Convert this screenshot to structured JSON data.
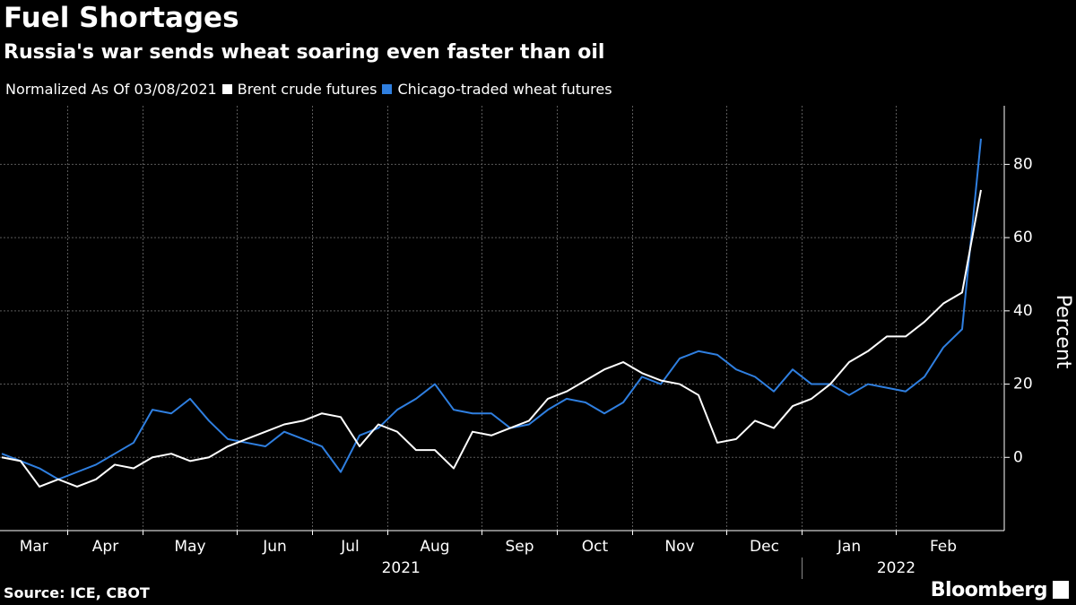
{
  "chart_data": {
    "type": "line",
    "title": "Fuel Shortages",
    "subtitle": "Russia's war sends wheat soaring even faster than oil",
    "note": "Normalized As Of 03/08/2021",
    "y_label": "Percent",
    "source": "Source: ICE, CBOT",
    "brand": "Bloomberg",
    "categories": [
      "Mar",
      null,
      null,
      null,
      "Apr",
      null,
      null,
      null,
      "May",
      null,
      null,
      null,
      null,
      "Jun",
      null,
      null,
      null,
      "Jul",
      null,
      null,
      null,
      "Aug",
      null,
      null,
      null,
      null,
      "Sep",
      null,
      null,
      null,
      "Oct",
      null,
      null,
      null,
      "Nov",
      null,
      null,
      null,
      null,
      "Dec",
      null,
      null,
      null,
      "Jan",
      null,
      null,
      null,
      null,
      "Feb",
      null,
      null,
      null,
      null
    ],
    "years": [
      {
        "label": "2021",
        "first_month": "Mar"
      },
      {
        "label": "2022",
        "first_month": "Jan"
      }
    ],
    "series": [
      {
        "name": "Brent crude futures",
        "color": "#ffffff",
        "values": [
          0,
          -1,
          -8,
          -6,
          -8,
          -6,
          -2,
          -3,
          0,
          1,
          -1,
          0,
          3,
          5,
          7,
          9,
          10,
          12,
          11,
          3,
          9,
          7,
          2,
          2,
          -3,
          7,
          6,
          8,
          10,
          16,
          18,
          21,
          24,
          26,
          23,
          21,
          20,
          17,
          4,
          5,
          10,
          8,
          14,
          16,
          20,
          26,
          29,
          33,
          33,
          37,
          42,
          45,
          73
        ]
      },
      {
        "name": "Chicago-traded wheat futures",
        "color": "#2f7fe0",
        "values": [
          1,
          -1,
          -3,
          -6,
          -4,
          -2,
          1,
          4,
          13,
          12,
          16,
          10,
          5,
          4,
          3,
          7,
          5,
          3,
          -4,
          6,
          8,
          13,
          16,
          20,
          13,
          12,
          12,
          8,
          9,
          13,
          16,
          15,
          12,
          15,
          22,
          20,
          27,
          29,
          28,
          24,
          22,
          18,
          24,
          20,
          20,
          17,
          20,
          19,
          18,
          22,
          30,
          35,
          87
        ]
      }
    ],
    "ylim": [
      -20,
      96
    ],
    "yticks": [
      0,
      20,
      40,
      60,
      80
    ],
    "grid": true
  }
}
